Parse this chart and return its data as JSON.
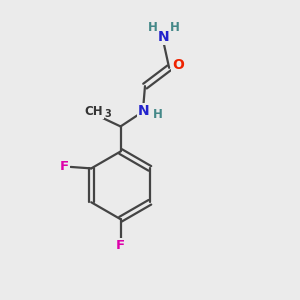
{
  "background_color": "#ebebeb",
  "atom_colors": {
    "N": "#2222cc",
    "O": "#ee2200",
    "F": "#dd00aa",
    "C": "#333333",
    "H": "#448888"
  },
  "bond_color": "#444444",
  "bond_lw": 1.6,
  "figsize": [
    3.0,
    3.0
  ],
  "dpi": 100,
  "xlim": [
    0,
    10
  ],
  "ylim": [
    0,
    10
  ]
}
